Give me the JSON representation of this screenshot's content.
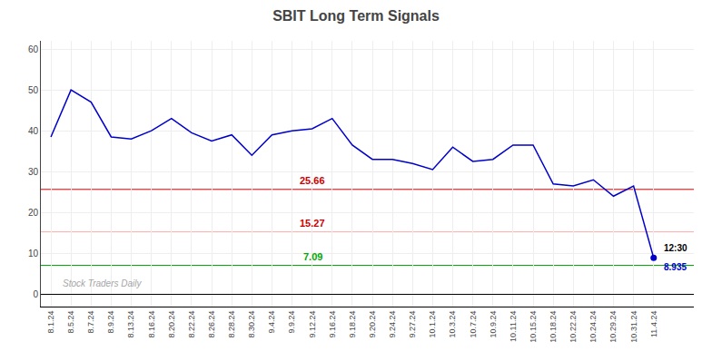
{
  "chart_data": {
    "type": "line",
    "title": "SBIT Long Term Signals",
    "categories": [
      "8.1.24",
      "8.5.24",
      "8.7.24",
      "8.9.24",
      "8.13.24",
      "8.16.24",
      "8.20.24",
      "8.22.24",
      "8.26.24",
      "8.28.24",
      "8.30.24",
      "9.4.24",
      "9.9.24",
      "9.12.24",
      "9.16.24",
      "9.18.24",
      "9.20.24",
      "9.24.24",
      "9.27.24",
      "10.1.24",
      "10.3.24",
      "10.7.24",
      "10.9.24",
      "10.11.24",
      "10.15.24",
      "10.18.24",
      "10.22.24",
      "10.24.24",
      "10.29.24",
      "10.31.24",
      "11.4.24"
    ],
    "values": [
      38.5,
      50.0,
      47.0,
      38.5,
      38.0,
      40.0,
      43.0,
      39.5,
      37.5,
      39.0,
      34.0,
      39.0,
      40.0,
      40.5,
      43.0,
      36.5,
      33.0,
      33.0,
      32.0,
      30.5,
      36.0,
      32.5,
      33.0,
      36.5,
      36.5,
      27.0,
      26.5,
      28.0,
      24.0,
      26.5,
      8.935
    ],
    "color": "#0000cc",
    "hlines": [
      {
        "value": 25.66,
        "label": "25.66",
        "color": "#cc0000",
        "label_color": "#cc0000"
      },
      {
        "value": 15.27,
        "label": "15.27",
        "color": "#ffaaaa",
        "label_color": "#cc0000"
      },
      {
        "value": 7.09,
        "label": "7.09",
        "color": "#00aa00",
        "label_color": "#00aa00"
      }
    ],
    "last_point_labels": [
      "12:30",
      "8.935"
    ],
    "watermark": "Stock Traders Daily",
    "ylim": [
      -3,
      62
    ],
    "yticks": [
      0,
      10,
      20,
      30,
      40,
      50,
      60
    ],
    "grid": true
  }
}
